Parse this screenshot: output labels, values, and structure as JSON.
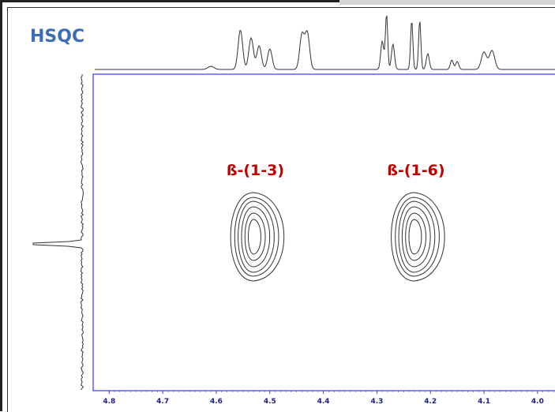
{
  "chart_data": {
    "type": "heatmap",
    "title": "HSQC",
    "xlabel": "",
    "ylabel": "",
    "xlim": [
      4.83,
      3.96
    ],
    "x_ticks": [
      "4.8",
      "4.7",
      "4.6",
      "4.5",
      "4.4",
      "4.3",
      "4.2",
      "4.1",
      "4.0"
    ],
    "peaks": [
      {
        "label": "ß-(1-3)",
        "x": 4.53
      },
      {
        "label": "ß-(1-6)",
        "x": 4.23
      }
    ],
    "colors": {
      "title": "#3d6eb5",
      "labels": "#c00000",
      "axis": "#3b3bf0",
      "ticks": "#1c1c8c",
      "trace": "#333333"
    }
  }
}
